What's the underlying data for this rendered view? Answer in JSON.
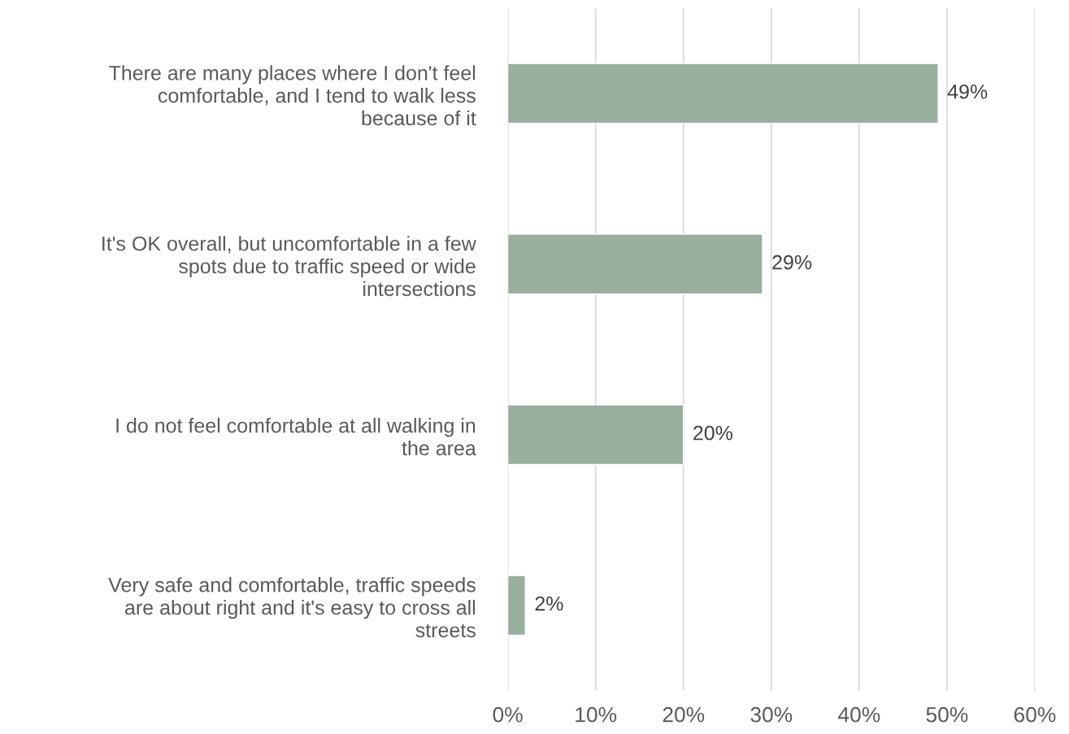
{
  "chart_data": {
    "type": "bar",
    "orientation": "horizontal",
    "categories": [
      "There are many places where I don't feel\ncomfortable, and I tend to walk less\nbecause of it",
      "It's OK overall, but uncomfortable in a few\nspots due to traffic speed or wide\nintersections",
      "I do not feel comfortable at all walking in\nthe area",
      "Very safe and comfortable, traffic speeds\nare about right and it's easy to cross all\nstreets"
    ],
    "values": [
      49,
      29,
      20,
      2
    ],
    "value_labels": [
      "49%",
      "29%",
      "20%",
      "2%"
    ],
    "color": "#97af9c",
    "xlim": [
      0,
      60
    ],
    "xticks": [
      {
        "value": 0,
        "label": "0%"
      },
      {
        "value": 10,
        "label": "10%"
      },
      {
        "value": 20,
        "label": "20%"
      },
      {
        "value": 30,
        "label": "30%"
      },
      {
        "value": 40,
        "label": "40%"
      },
      {
        "value": 50,
        "label": "50%"
      },
      {
        "value": 60,
        "label": "60%"
      }
    ],
    "grid": "x",
    "legend": false
  }
}
